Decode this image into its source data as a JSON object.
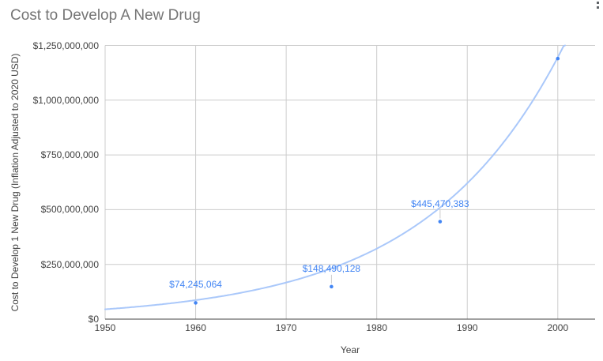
{
  "title": "Cost to Develop A New Drug",
  "icons": {
    "more_options": "kebab-vertical-dots"
  },
  "chart_data": {
    "type": "scatter",
    "title": "Cost to Develop A New Drug",
    "xlabel": "Year",
    "ylabel": "Cost to Develop 1 New Drug (Inflation Adjusted to 2020 USD)",
    "xlim": [
      1950,
      2004
    ],
    "ylim": [
      0,
      1250000000
    ],
    "x_ticks": [
      1950,
      1960,
      1970,
      1980,
      1990,
      2000
    ],
    "y_ticks": [
      {
        "value": 0,
        "label": "$0"
      },
      {
        "value": 250000000,
        "label": "$250,000,000"
      },
      {
        "value": 500000000,
        "label": "$500,000,000"
      },
      {
        "value": 750000000,
        "label": "$750,000,000"
      },
      {
        "value": 1000000000,
        "label": "$1,000,000,000"
      },
      {
        "value": 1250000000,
        "label": "$1,250,000,000"
      }
    ],
    "grid": true,
    "legend": "none",
    "points": [
      {
        "x": 1960,
        "y": 74245064,
        "label": "$74,245,064"
      },
      {
        "x": 1975,
        "y": 148490128,
        "label": "$148,490,128"
      },
      {
        "x": 1987,
        "y": 445470383,
        "label": "$445,470,383"
      },
      {
        "x": 2000,
        "y": 1190000000,
        "label": null
      }
    ],
    "trendline": {
      "type": "exponential",
      "a": 45000000,
      "b": 0.0656,
      "t0_year": 1950
    },
    "colors": {
      "series": "#4285f4",
      "trendline": "#aac8fa",
      "grid": "#cccccc",
      "axis_line": "#424242",
      "axis_text": "#424242",
      "title_text": "#757575",
      "data_label": "#4285f4",
      "leader_line": "#cccccc"
    }
  }
}
